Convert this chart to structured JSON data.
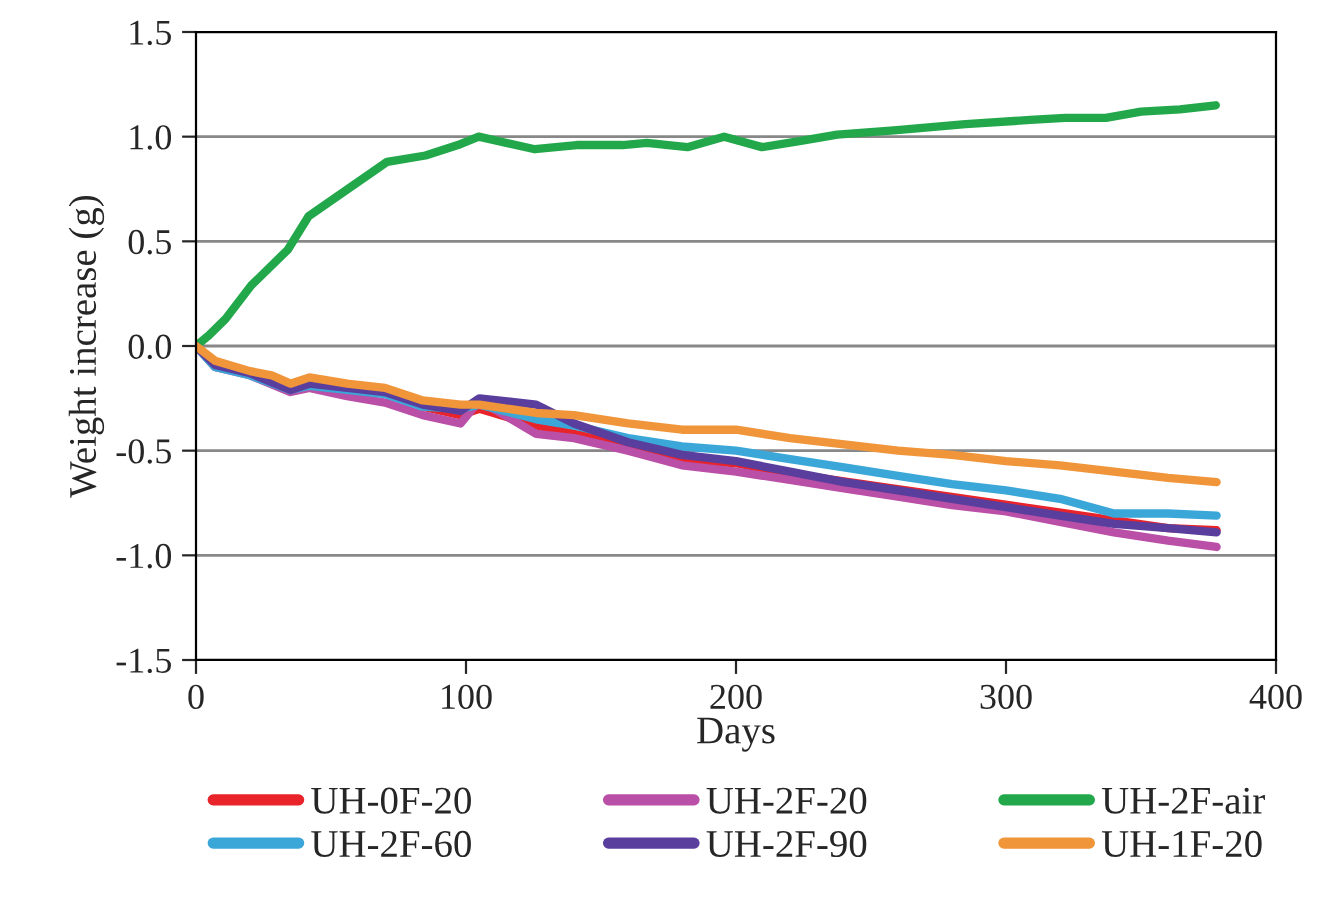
{
  "chart_data": {
    "type": "line",
    "xlabel": "Days",
    "ylabel": "Weight increase (g)",
    "xlim": [
      0,
      400
    ],
    "xticks": [
      0,
      100,
      200,
      300,
      400
    ],
    "ylim": [
      -1.5,
      1.5
    ],
    "yticks": [
      {
        "value": -1.5,
        "label": "-1.5"
      },
      {
        "value": -1.0,
        "label": "-1.0"
      },
      {
        "value": -0.5,
        "label": "-0.5"
      },
      {
        "value": 0.0,
        "label": "0.0"
      },
      {
        "value": 0.5,
        "label": "0.5"
      },
      {
        "value": 1.0,
        "label": "1.0"
      },
      {
        "value": 1.5,
        "label": "1.5"
      }
    ],
    "grid": "y",
    "legend": "bottom",
    "marker": "none",
    "line_style": "solid",
    "series": [
      {
        "name": "UH-0F-20",
        "color": "#e8242a",
        "x": [
          84,
          98,
          105,
          126,
          140,
          160,
          180,
          200,
          220,
          240,
          260,
          280,
          300,
          320,
          340,
          360,
          378
        ],
        "values": [
          -0.29,
          -0.33,
          -0.3,
          -0.38,
          -0.42,
          -0.47,
          -0.54,
          -0.56,
          -0.61,
          null,
          null,
          null,
          null,
          null,
          null,
          -0.87,
          -0.88
        ]
      },
      {
        "name": "UH-2F-20",
        "color": "#b94fa6",
        "x": [
          0,
          7,
          20,
          35,
          42,
          56,
          70,
          84,
          98,
          105,
          126,
          140,
          160,
          180,
          200,
          220,
          240,
          260,
          280,
          300,
          320,
          340,
          360,
          378
        ],
        "values": [
          0,
          -0.1,
          -0.14,
          -0.22,
          -0.2,
          -0.24,
          -0.27,
          -0.33,
          -0.37,
          -0.26,
          -0.42,
          -0.44,
          -0.5,
          -0.57,
          -0.6,
          -0.64,
          -0.68,
          -0.72,
          -0.76,
          -0.79,
          -0.84,
          -0.89,
          -0.93,
          -0.96
        ]
      },
      {
        "name": "UH-2F-air",
        "color": "#22a84a",
        "x": [
          0,
          4.7,
          11,
          20.5,
          34,
          41.7,
          70.8,
          85,
          97,
          104.7,
          125.5,
          141,
          158,
          167,
          182,
          195.6,
          209.6,
          224,
          237.5,
          258.5,
          285,
          309,
          322,
          337,
          350,
          364.4,
          377.7
        ],
        "values": [
          0,
          0.05,
          0.13,
          0.29,
          0.46,
          0.62,
          0.88,
          0.91,
          0.96,
          1.0,
          0.94,
          0.96,
          0.96,
          0.97,
          0.95,
          1.0,
          0.95,
          0.98,
          1.01,
          1.03,
          1.06,
          1.08,
          1.09,
          1.09,
          1.12,
          1.13,
          1.15
        ]
      },
      {
        "name": "UH-2F-60",
        "color": "#3ba7d9",
        "x": [
          0,
          7,
          20,
          35,
          42,
          56,
          70,
          84,
          98,
          105,
          126,
          140,
          160,
          180,
          200,
          220,
          240,
          260,
          280,
          300,
          320,
          340,
          360,
          378
        ],
        "values": [
          0,
          -0.1,
          -0.14,
          -0.21,
          -0.19,
          -0.21,
          -0.23,
          -0.29,
          -0.3,
          -0.28,
          -0.35,
          -0.38,
          -0.44,
          -0.48,
          -0.5,
          -0.54,
          -0.58,
          -0.62,
          -0.66,
          -0.69,
          -0.73,
          -0.8,
          -0.8,
          -0.81
        ]
      },
      {
        "name": "UH-2F-90",
        "color": "#5a3e9e",
        "x": [
          0,
          7,
          20,
          35,
          42,
          56,
          70,
          84,
          98,
          105,
          126,
          140,
          160,
          180,
          200,
          220,
          240,
          260,
          280,
          300,
          320,
          340,
          360,
          378
        ],
        "values": [
          0,
          -0.09,
          -0.13,
          -0.21,
          -0.18,
          -0.2,
          -0.22,
          -0.28,
          -0.31,
          -0.25,
          -0.28,
          -0.37,
          -0.46,
          -0.52,
          -0.55,
          -0.6,
          -0.65,
          -0.69,
          -0.73,
          -0.77,
          -0.81,
          -0.85,
          -0.87,
          -0.89
        ]
      },
      {
        "name": "UH-1F-20",
        "color": "#f0953a",
        "x": [
          0,
          7,
          20,
          28,
          35,
          42,
          56,
          70,
          84,
          98,
          105,
          126,
          140,
          160,
          180,
          200,
          220,
          240,
          260,
          280,
          300,
          320,
          340,
          360,
          378
        ],
        "values": [
          0,
          -0.07,
          -0.12,
          -0.14,
          -0.18,
          -0.15,
          -0.18,
          -0.2,
          -0.26,
          -0.28,
          -0.28,
          -0.32,
          -0.33,
          -0.37,
          -0.4,
          -0.4,
          -0.44,
          -0.47,
          -0.5,
          -0.52,
          -0.55,
          -0.57,
          -0.6,
          -0.63,
          -0.65
        ]
      }
    ]
  }
}
